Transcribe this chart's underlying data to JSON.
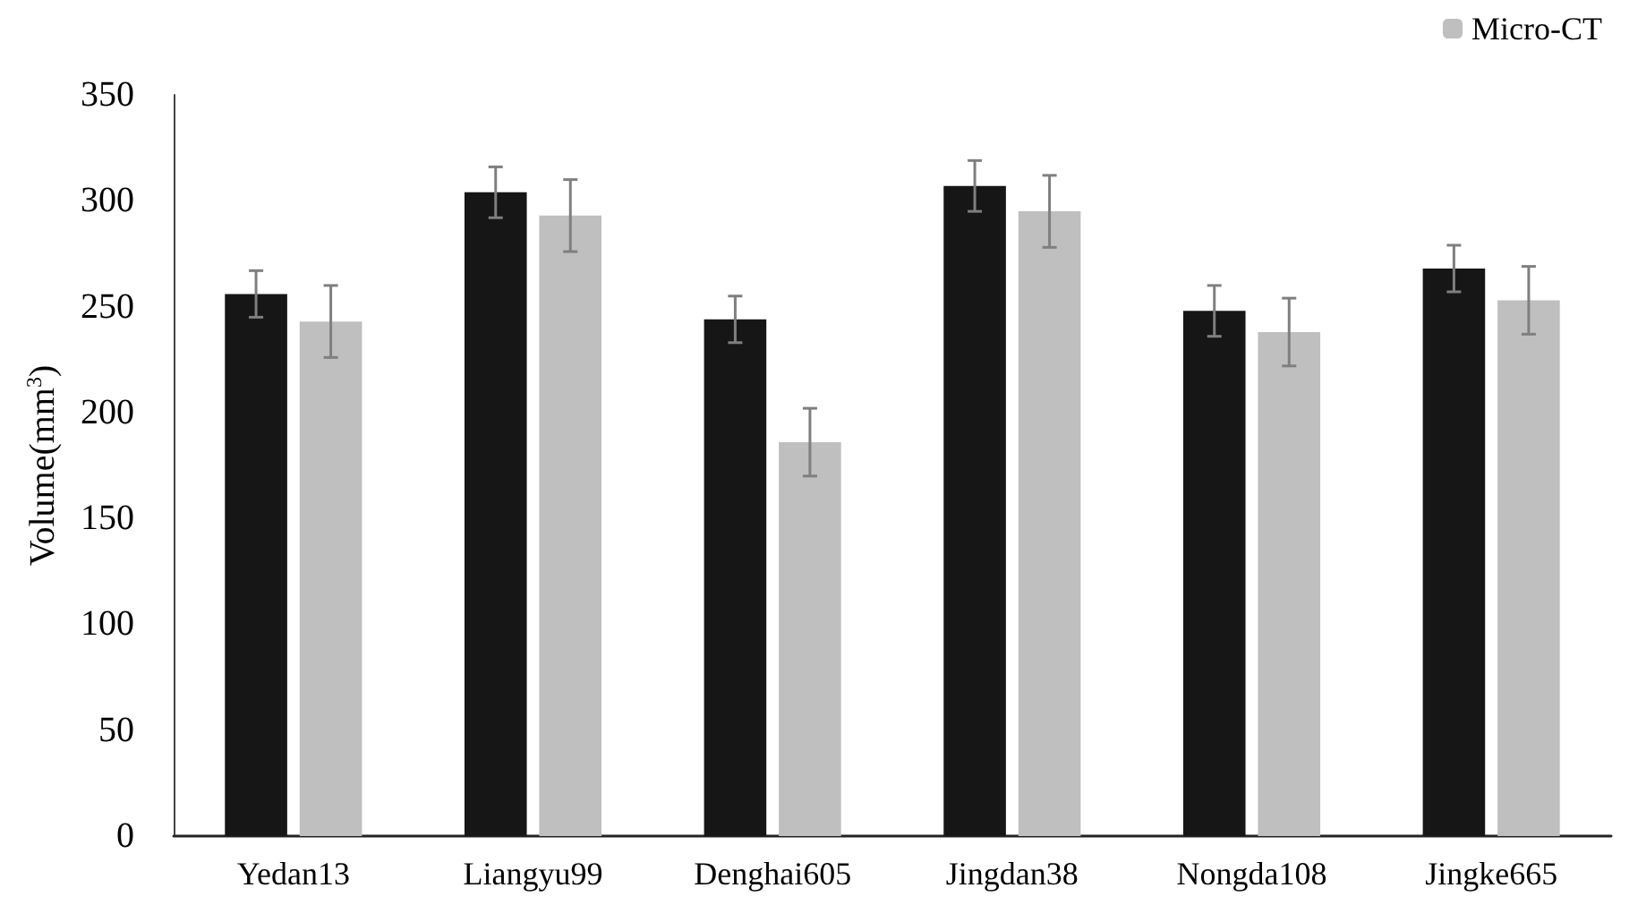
{
  "chart_data": {
    "type": "bar",
    "ylabel": "Volume(mm$^{3}$)",
    "categories": [
      "Yedan13",
      "Liangyu99",
      "Denghai605",
      "Jingdan38",
      "Nongda108",
      "Jingke665"
    ],
    "series": [
      {
        "color": "#161616",
        "values": [
          256,
          304,
          244,
          307,
          248,
          268
        ],
        "errors": [
          11,
          12,
          11,
          12,
          12,
          11
        ]
      },
      {
        "name": "Micro-CT",
        "color": "#bfbfbf",
        "values": [
          243,
          293,
          186,
          295,
          238,
          253
        ],
        "errors": [
          17,
          17,
          16,
          17,
          16,
          16
        ]
      }
    ],
    "ylim": [
      0,
      350
    ],
    "yticks": [
      0,
      50,
      100,
      150,
      200,
      250,
      300,
      350
    ],
    "grid": false,
    "legend": "top right"
  }
}
